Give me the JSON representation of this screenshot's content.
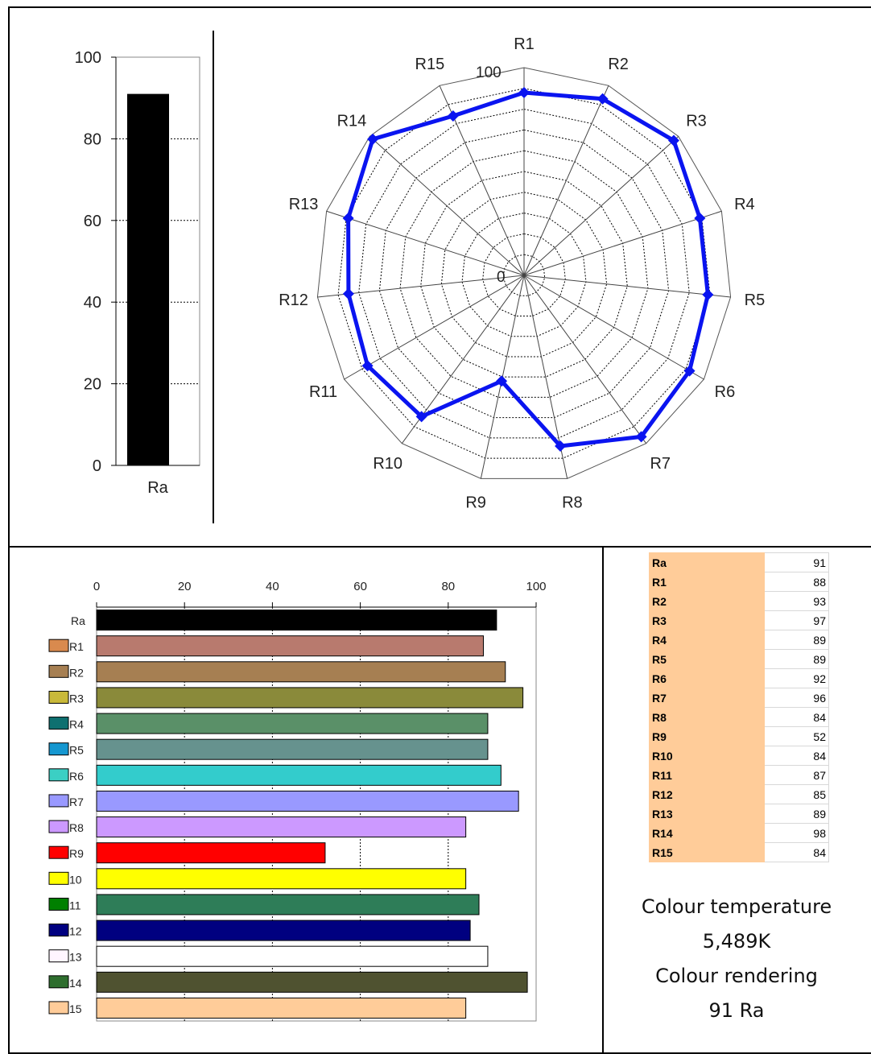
{
  "chart_data": [
    {
      "type": "bar",
      "categories": [
        "Ra"
      ],
      "values": [
        91
      ],
      "ylim": [
        0,
        100
      ],
      "yticks": [
        0,
        20,
        40,
        60,
        80,
        100
      ],
      "grid": true,
      "colors": [
        "#000000"
      ]
    },
    {
      "type": "radar",
      "categories": [
        "R1",
        "R2",
        "R3",
        "R4",
        "R5",
        "R6",
        "R7",
        "R8",
        "R9",
        "R10",
        "R11",
        "R12",
        "R13",
        "R14",
        "R15"
      ],
      "values": [
        88,
        93,
        97,
        89,
        89,
        92,
        96,
        84,
        52,
        84,
        87,
        85,
        89,
        98,
        84
      ],
      "range": [
        0,
        100
      ],
      "range_labels": [
        "0",
        "100"
      ],
      "grid": true,
      "line_color": "#0a14f0"
    },
    {
      "type": "bar",
      "orientation": "horizontal",
      "categories": [
        "Ra",
        "R1",
        "R2",
        "R3",
        "R4",
        "R5",
        "R6",
        "R7",
        "R8",
        "R9",
        "10",
        "11",
        "12",
        "13",
        "14",
        "15"
      ],
      "values": [
        91,
        88,
        93,
        97,
        89,
        89,
        92,
        96,
        84,
        52,
        84,
        87,
        85,
        89,
        98,
        84
      ],
      "xlim": [
        0,
        100
      ],
      "xticks": [
        0,
        20,
        40,
        60,
        80,
        100
      ],
      "grid": true,
      "bar_colors": [
        "#000000",
        "#b87a6e",
        "#a67f52",
        "#8a8a3a",
        "#5a9068",
        "#66928e",
        "#33cccc",
        "#9999ff",
        "#cc99ff",
        "#ff0000",
        "#ffff00",
        "#2e7d58",
        "#000080",
        "#ffffff",
        "#4f5230",
        "#ffcc99"
      ],
      "swatch_colors": [
        null,
        "#d98a4e",
        "#a67f52",
        "#c9b93a",
        "#0e7070",
        "#1597d0",
        "#3bcfc4",
        "#9999ff",
        "#cc99ff",
        "#ff0000",
        "#ffff00",
        "#008000",
        "#000080",
        "#fff5ff",
        "#2e6e2e",
        "#ffcc99"
      ]
    },
    {
      "type": "table",
      "rows": [
        [
          "Ra",
          "91"
        ],
        [
          "R1",
          "88"
        ],
        [
          "R2",
          "93"
        ],
        [
          "R3",
          "97"
        ],
        [
          "R4",
          "89"
        ],
        [
          "R5",
          "89"
        ],
        [
          "R6",
          "92"
        ],
        [
          "R7",
          "96"
        ],
        [
          "R8",
          "84"
        ],
        [
          "R9",
          "52"
        ],
        [
          "R10",
          "84"
        ],
        [
          "R11",
          "87"
        ],
        [
          "R12",
          "85"
        ],
        [
          "R13",
          "89"
        ],
        [
          "R14",
          "98"
        ],
        [
          "R15",
          "84"
        ]
      ]
    }
  ],
  "summary": {
    "temp_label": "Colour temperature",
    "temp_value": "5,489K",
    "cri_label": "Colour rendering",
    "cri_value": "91 Ra"
  }
}
